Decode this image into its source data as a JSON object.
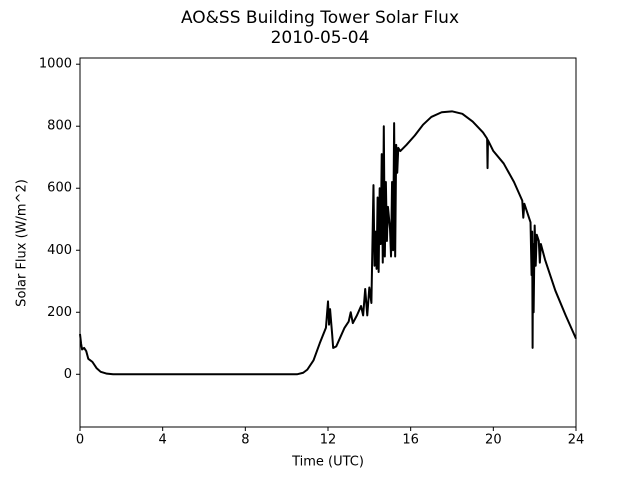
{
  "chart_data": {
    "type": "line",
    "title": "AO&SS Building Tower Solar Flux",
    "subtitle": "2010-05-04",
    "x_label": "Time (UTC)",
    "y_label": "Solar Flux (W/m^2)",
    "xlim": [
      0,
      24
    ],
    "xticks": [
      0,
      4,
      8,
      12,
      16,
      20,
      24
    ],
    "ylim": [
      -170,
      1020
    ],
    "yticks": [
      0,
      200,
      400,
      600,
      800,
      1000
    ],
    "grid": false,
    "series": [
      {
        "color": "#000000",
        "x": [
          0,
          0.05,
          0.1,
          0.2,
          0.3,
          0.4,
          0.6,
          0.8,
          1.0,
          1.3,
          1.6,
          4,
          8,
          10.5,
          10.8,
          11.0,
          11.3,
          11.6,
          11.9,
          12.0,
          12.05,
          12.1,
          12.2,
          12.25,
          12.4,
          12.6,
          12.8,
          13.0,
          13.1,
          13.2,
          13.4,
          13.6,
          13.7,
          13.8,
          13.9,
          14.0,
          14.1,
          14.2,
          14.25,
          14.3,
          14.35,
          14.4,
          14.45,
          14.5,
          14.55,
          14.6,
          14.65,
          14.7,
          14.75,
          14.8,
          14.85,
          14.9,
          15.0,
          15.05,
          15.1,
          15.15,
          15.2,
          15.25,
          15.3,
          15.35,
          15.4,
          15.5,
          15.8,
          16.2,
          16.6,
          17.0,
          17.5,
          18.0,
          18.5,
          19.0,
          19.5,
          19.7,
          19.72,
          19.74,
          20.0,
          20.5,
          21.0,
          21.4,
          21.45,
          21.5,
          21.8,
          21.85,
          21.88,
          21.9,
          21.92,
          21.95,
          22.0,
          22.05,
          22.1,
          22.2,
          22.25,
          22.3,
          22.5,
          23.0,
          23.5,
          24.0
        ],
        "values": [
          130,
          100,
          80,
          85,
          75,
          50,
          40,
          20,
          8,
          2,
          0,
          0,
          0,
          0,
          5,
          15,
          45,
          100,
          150,
          235,
          160,
          210,
          130,
          85,
          90,
          120,
          150,
          170,
          200,
          165,
          190,
          220,
          190,
          275,
          190,
          280,
          230,
          610,
          350,
          460,
          340,
          570,
          330,
          600,
          420,
          710,
          360,
          800,
          380,
          620,
          430,
          540,
          470,
          380,
          620,
          400,
          810,
          380,
          740,
          650,
          730,
          720,
          740,
          770,
          805,
          830,
          845,
          848,
          840,
          815,
          780,
          760,
          665,
          755,
          720,
          680,
          620,
          560,
          505,
          550,
          490,
          320,
          460,
          85,
          420,
          200,
          480,
          350,
          450,
          430,
          360,
          420,
          370,
          270,
          190,
          115
        ]
      }
    ]
  }
}
